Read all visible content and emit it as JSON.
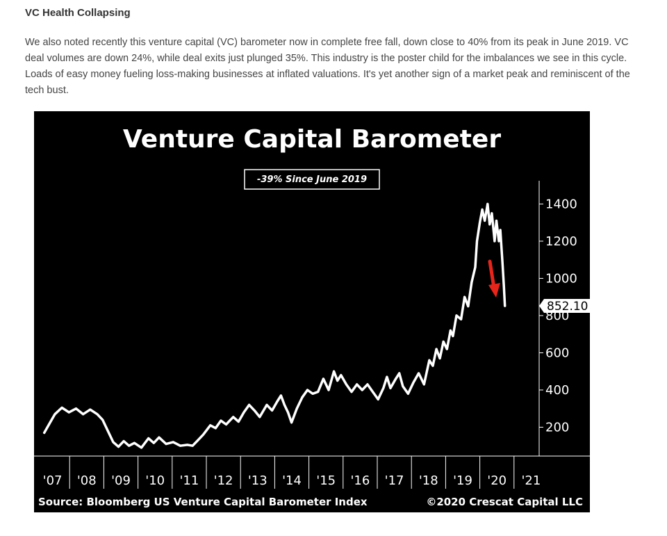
{
  "article": {
    "heading": "VC Health Collapsing",
    "paragraph": "We also noted recently this venture capital (VC) barometer now in complete free fall, down close to 40% from its peak in June 2019. VC deal volumes are down 24%, while deal exits just plunged 35%. This industry is the poster child for the imbalances we see in this cycle. Loads of easy money fueling loss-making businesses at inflated valuations. It's yet another sign of a market peak and reminiscent of the tech bust."
  },
  "colors": {
    "background": "#000000",
    "line": "#ffffff",
    "arrow": "#e8251b"
  },
  "chart_data": {
    "type": "line",
    "title": "Venture Capital Barometer",
    "annotation": "-39% Since June 2019",
    "source": "Source: Bloomberg US Venture Capital Barometer Index",
    "copyright": "©2020 Crescat Capital LLC",
    "last_value_label": "852.10",
    "ylim": [
      0,
      1480
    ],
    "xlim": [
      2007.0,
      2022.0
    ],
    "y_ticks": [
      {
        "value": 200,
        "label": "200"
      },
      {
        "value": 400,
        "label": "400"
      },
      {
        "value": 600,
        "label": "600"
      },
      {
        "value": 800,
        "label": "800"
      },
      {
        "value": 1000,
        "label": "1000"
      },
      {
        "value": 1200,
        "label": "1200"
      },
      {
        "value": 1400,
        "label": "1400"
      }
    ],
    "x_ticks": [
      {
        "value": 2007,
        "label": "'07"
      },
      {
        "value": 2008,
        "label": "'08"
      },
      {
        "value": 2009,
        "label": "'09"
      },
      {
        "value": 2010,
        "label": "'10"
      },
      {
        "value": 2011,
        "label": "'11"
      },
      {
        "value": 2012,
        "label": "'12"
      },
      {
        "value": 2013,
        "label": "'13"
      },
      {
        "value": 2014,
        "label": "'14"
      },
      {
        "value": 2015,
        "label": "'15"
      },
      {
        "value": 2016,
        "label": "'16"
      },
      {
        "value": 2017,
        "label": "'17"
      },
      {
        "value": 2018,
        "label": "'18"
      },
      {
        "value": 2019,
        "label": "'19"
      },
      {
        "value": 2020,
        "label": "'20"
      },
      {
        "value": 2021,
        "label": "'21"
      }
    ],
    "series": [
      {
        "points": [
          [
            2007.05,
            170
          ],
          [
            2007.2,
            220
          ],
          [
            2007.35,
            270
          ],
          [
            2007.55,
            305
          ],
          [
            2007.75,
            280
          ],
          [
            2007.95,
            300
          ],
          [
            2008.15,
            270
          ],
          [
            2008.35,
            295
          ],
          [
            2008.55,
            270
          ],
          [
            2008.7,
            240
          ],
          [
            2008.85,
            180
          ],
          [
            2009.0,
            120
          ],
          [
            2009.15,
            95
          ],
          [
            2009.3,
            125
          ],
          [
            2009.45,
            100
          ],
          [
            2009.6,
            115
          ],
          [
            2009.8,
            90
          ],
          [
            2010.0,
            140
          ],
          [
            2010.15,
            115
          ],
          [
            2010.3,
            145
          ],
          [
            2010.5,
            110
          ],
          [
            2010.7,
            120
          ],
          [
            2010.9,
            100
          ],
          [
            2011.1,
            105
          ],
          [
            2011.25,
            100
          ],
          [
            2011.4,
            130
          ],
          [
            2011.55,
            160
          ],
          [
            2011.75,
            210
          ],
          [
            2011.9,
            195
          ],
          [
            2012.05,
            235
          ],
          [
            2012.2,
            215
          ],
          [
            2012.4,
            255
          ],
          [
            2012.55,
            230
          ],
          [
            2012.7,
            280
          ],
          [
            2012.85,
            320
          ],
          [
            2013.0,
            290
          ],
          [
            2013.15,
            255
          ],
          [
            2013.35,
            320
          ],
          [
            2013.5,
            290
          ],
          [
            2013.65,
            340
          ],
          [
            2013.75,
            370
          ],
          [
            2013.85,
            320
          ],
          [
            2013.95,
            280
          ],
          [
            2014.05,
            225
          ],
          [
            2014.2,
            300
          ],
          [
            2014.35,
            360
          ],
          [
            2014.5,
            400
          ],
          [
            2014.65,
            380
          ],
          [
            2014.8,
            390
          ],
          [
            2014.95,
            460
          ],
          [
            2015.1,
            400
          ],
          [
            2015.25,
            500
          ],
          [
            2015.35,
            450
          ],
          [
            2015.45,
            480
          ],
          [
            2015.6,
            430
          ],
          [
            2015.75,
            390
          ],
          [
            2015.9,
            430
          ],
          [
            2016.05,
            400
          ],
          [
            2016.2,
            430
          ],
          [
            2016.35,
            390
          ],
          [
            2016.5,
            350
          ],
          [
            2016.65,
            410
          ],
          [
            2016.75,
            470
          ],
          [
            2016.85,
            410
          ],
          [
            2017.0,
            460
          ],
          [
            2017.1,
            490
          ],
          [
            2017.2,
            420
          ],
          [
            2017.35,
            380
          ],
          [
            2017.5,
            440
          ],
          [
            2017.65,
            490
          ],
          [
            2017.8,
            430
          ],
          [
            2017.95,
            560
          ],
          [
            2018.05,
            530
          ],
          [
            2018.15,
            620
          ],
          [
            2018.25,
            570
          ],
          [
            2018.35,
            660
          ],
          [
            2018.45,
            620
          ],
          [
            2018.55,
            720
          ],
          [
            2018.62,
            690
          ],
          [
            2018.72,
            800
          ],
          [
            2018.85,
            780
          ],
          [
            2018.95,
            900
          ],
          [
            2019.05,
            850
          ],
          [
            2019.15,
            980
          ],
          [
            2019.25,
            1060
          ],
          [
            2019.3,
            1200
          ],
          [
            2019.38,
            1300
          ],
          [
            2019.45,
            1370
          ],
          [
            2019.52,
            1310
          ],
          [
            2019.6,
            1400
          ],
          [
            2019.66,
            1290
          ],
          [
            2019.72,
            1350
          ],
          [
            2019.8,
            1200
          ],
          [
            2019.85,
            1310
          ],
          [
            2019.92,
            1200
          ],
          [
            2019.96,
            1260
          ],
          [
            2020.02,
            1090
          ],
          [
            2020.06,
            960
          ],
          [
            2020.09,
            852.1
          ]
        ]
      }
    ]
  }
}
